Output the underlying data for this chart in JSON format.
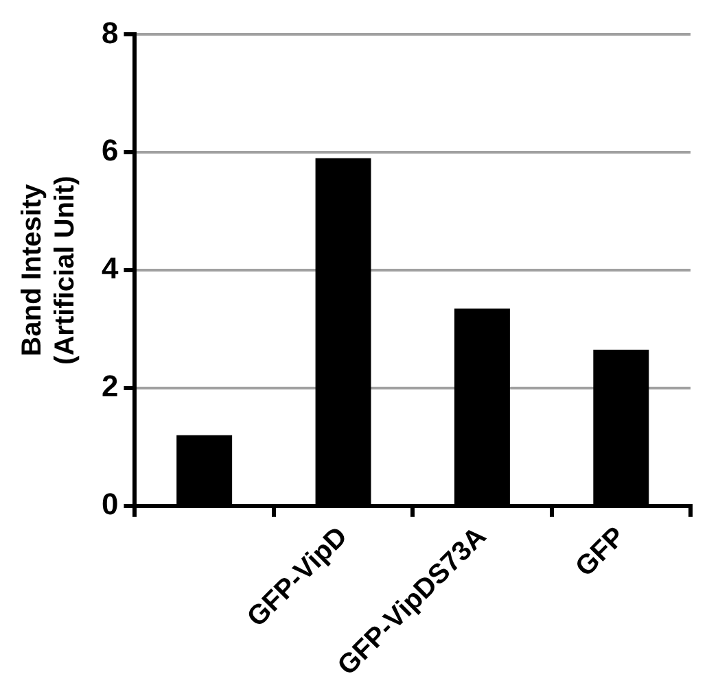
{
  "chart_data": {
    "type": "bar",
    "categories": [
      null,
      "GFP-VipD",
      "GFP-VipDS73A",
      "GFP"
    ],
    "values": [
      1.2,
      5.9,
      3.35,
      2.65
    ],
    "color": "#000000",
    "ylabel": "Band Intesity\n(Artificial Unit)",
    "ylim": [
      0,
      8
    ],
    "yticks": [
      0,
      2,
      4,
      6,
      8
    ],
    "grid": "y",
    "legend": false
  }
}
